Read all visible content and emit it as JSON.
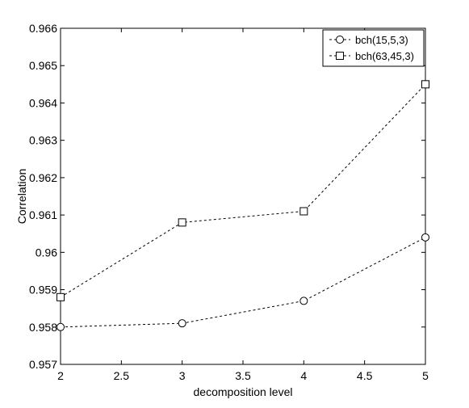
{
  "chart_data": {
    "type": "line",
    "title": "",
    "xlabel": "decomposition level",
    "ylabel": "Correlation",
    "xlim": [
      2,
      5
    ],
    "ylim": [
      0.957,
      0.966
    ],
    "x_ticks": [
      2,
      2.5,
      3,
      3.5,
      4,
      4.5,
      5
    ],
    "x_tick_labels": [
      "2",
      "2.5",
      "3",
      "3.5",
      "4",
      "4.5",
      "5"
    ],
    "y_ticks": [
      0.957,
      0.958,
      0.959,
      0.96,
      0.961,
      0.962,
      0.963,
      0.964,
      0.965,
      0.966
    ],
    "y_tick_labels": [
      "0.957",
      "0.958",
      "0.959",
      "0.96",
      "0.961",
      "0.962",
      "0.963",
      "0.964",
      "0.965",
      "0.966"
    ],
    "grid": false,
    "legend_position": "top-right",
    "series": [
      {
        "name": "bch(15,5,3)",
        "marker": "circle",
        "line_style": "dashed",
        "color": "#000000",
        "x": [
          2,
          3,
          4,
          5
        ],
        "y": [
          0.958,
          0.9581,
          0.9587,
          0.9604
        ]
      },
      {
        "name": "bch(63,45,3)",
        "marker": "square",
        "line_style": "dashed",
        "color": "#000000",
        "x": [
          2,
          3,
          4,
          5
        ],
        "y": [
          0.9588,
          0.9608,
          0.9611,
          0.9645
        ]
      }
    ]
  }
}
